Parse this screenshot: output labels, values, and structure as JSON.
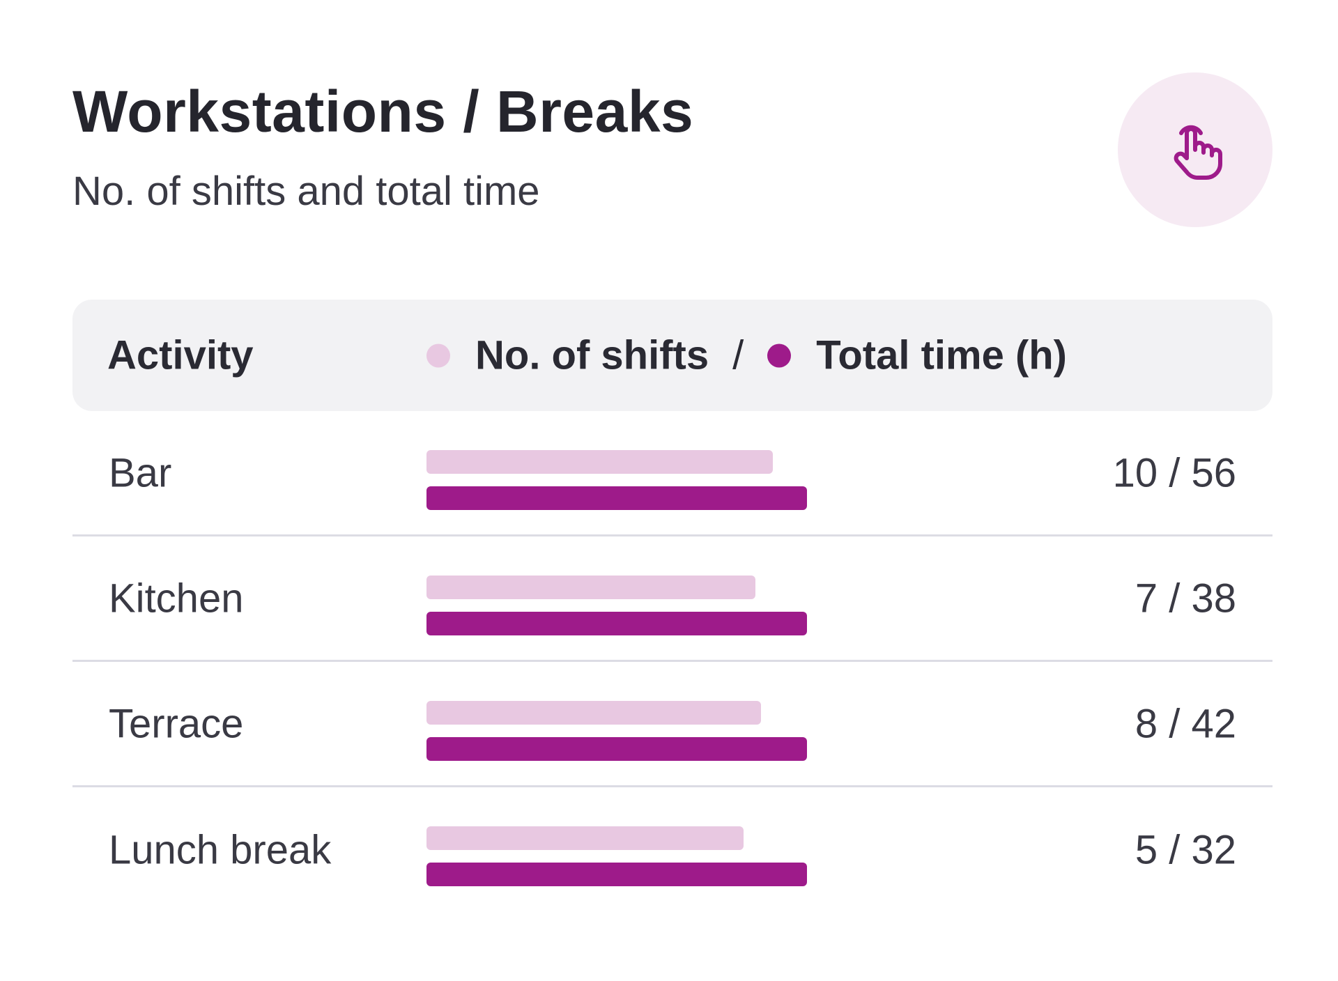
{
  "header": {
    "title": "Workstations / Breaks",
    "subtitle": "No. of shifts and total time",
    "action_icon": "hand-pointer-icon"
  },
  "table_header": {
    "activity": "Activity",
    "shifts_legend": "No. of shifts",
    "separator": "/",
    "time_legend": "Total time (h)"
  },
  "colors": {
    "shifts": "#e8c8e1",
    "time": "#9e1b8a",
    "icon_bg": "#f6eaf3"
  },
  "chart_data": {
    "type": "bar",
    "categories": [
      "Bar",
      "Kitchen",
      "Terrace",
      "Lunch break"
    ],
    "series": [
      {
        "name": "No. of shifts",
        "values": [
          10,
          7,
          8,
          5
        ]
      },
      {
        "name": "Total time (h)",
        "values": [
          56,
          38,
          42,
          32
        ]
      }
    ],
    "value_labels": [
      "10 / 56",
      "7 / 38",
      "8 / 42",
      "5 / 32"
    ]
  }
}
